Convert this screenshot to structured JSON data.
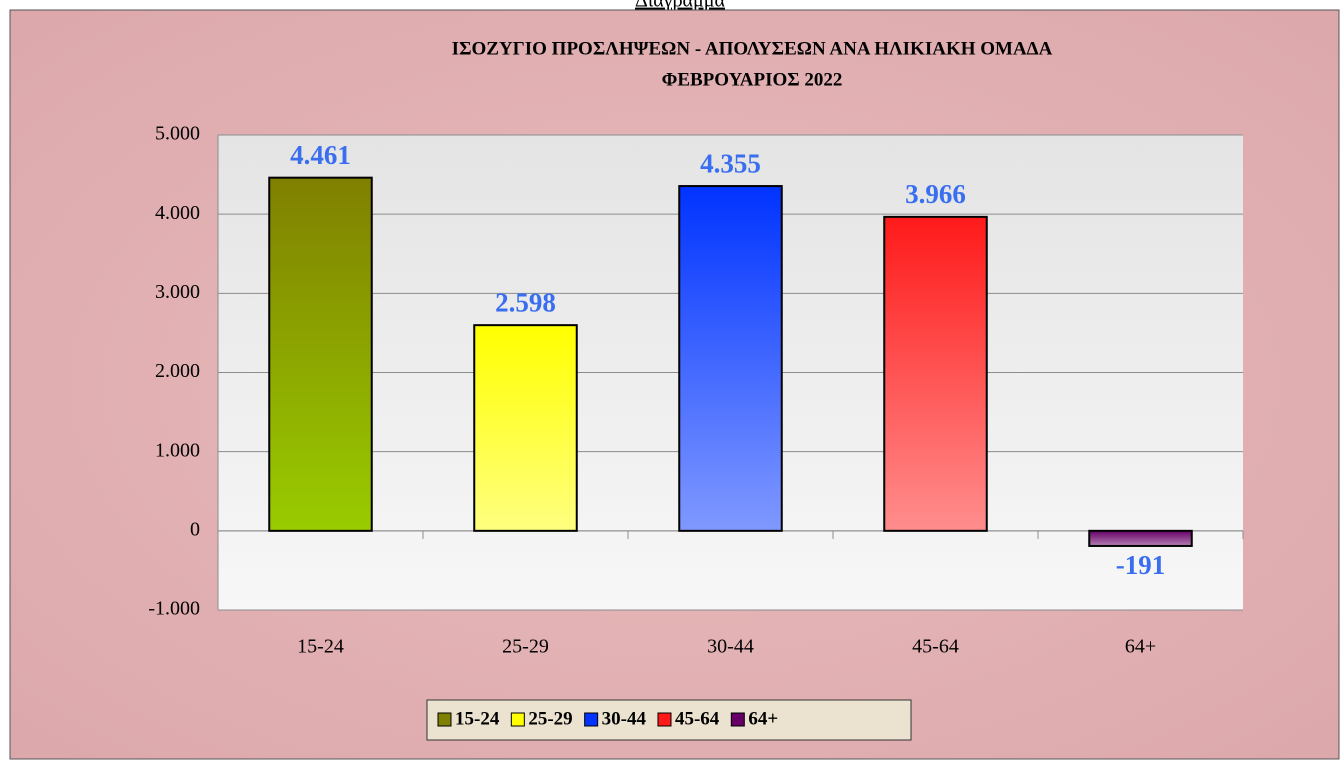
{
  "caption": "Διάγραμμα",
  "chart_data": {
    "type": "bar",
    "title": "ΙΣΟΖΥΓΙΟ  ΠΡΟΣΛΗΨΕΩΝ - ΑΠΟΛΥΣΕΩΝ ΑΝΑ ΗΛΙΚΙΑΚΗ ΟΜΑΔΑ",
    "subtitle": "ΦΕΒΡΟΥΑΡΙΟΣ  2022",
    "categories": [
      "15-24",
      "25-29",
      "30-44",
      "45-64",
      "64+"
    ],
    "values": [
      4461,
      2598,
      4355,
      3966,
      -191
    ],
    "value_labels": [
      "4.461",
      "2.598",
      "4.355",
      "3.966",
      "-191"
    ],
    "colors": [
      "#808000",
      "#ffff00",
      "#0033ff",
      "#ff1a1a",
      "#660066"
    ],
    "ylim": [
      -1000,
      5000
    ],
    "yticks": [
      {
        "value": -1000,
        "label": "-1.000"
      },
      0,
      {
        "value": 1000,
        "label": "1.000"
      },
      {
        "value": 2000,
        "label": "2.000"
      },
      {
        "value": 3000,
        "label": "3.000"
      },
      {
        "value": 4000,
        "label": "4.000"
      },
      {
        "value": 5000,
        "label": "5.000"
      }
    ],
    "grid": true,
    "legend": "bottom"
  }
}
